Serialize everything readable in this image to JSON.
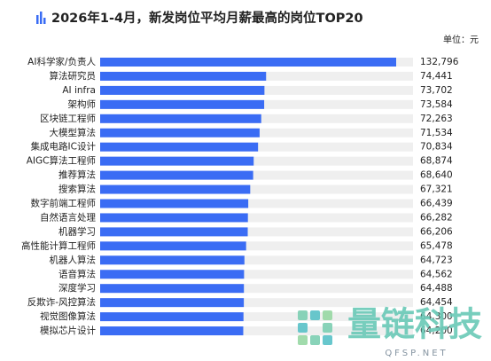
{
  "chart_data": {
    "type": "hbar",
    "title": "2026年1-4月，新发岗位平均月薪最高的岗位TOP20",
    "unit": "单位：元",
    "categories": [
      "AI科学家/负责人",
      "算法研究员",
      "AI infra",
      "架构师",
      "区块链工程师",
      "大模型算法",
      "集成电路IC设计",
      "AIGC算法工程师",
      "推荐算法",
      "搜索算法",
      "数字前端工程师",
      "自然语言处理",
      "机器学习",
      "高性能计算工程师",
      "机器人算法",
      "语音算法",
      "深度学习",
      "反欺诈-风控算法",
      "视觉图像算法",
      "模拟芯片设计"
    ],
    "values": [
      132796,
      74441,
      73702,
      73584,
      72263,
      71534,
      70834,
      68874,
      68640,
      67321,
      66439,
      66282,
      66206,
      65478,
      64723,
      64562,
      64488,
      64454,
      64300,
      64200
    ],
    "value_labels": [
      "132,796",
      "74,441",
      "73,702",
      "73,584",
      "72,263",
      "71,534",
      "70,834",
      "68,874",
      "68,640",
      "67,321",
      "66,439",
      "66,282",
      "66,206",
      "65,478",
      "64,723",
      "64,562",
      "64,488",
      "64,454",
      "64,300",
      "64,200"
    ],
    "color": "#3a6cf4",
    "track_color": "#efefef"
  },
  "watermark": {
    "name": "量链科技",
    "site": "QFSP.NET"
  }
}
